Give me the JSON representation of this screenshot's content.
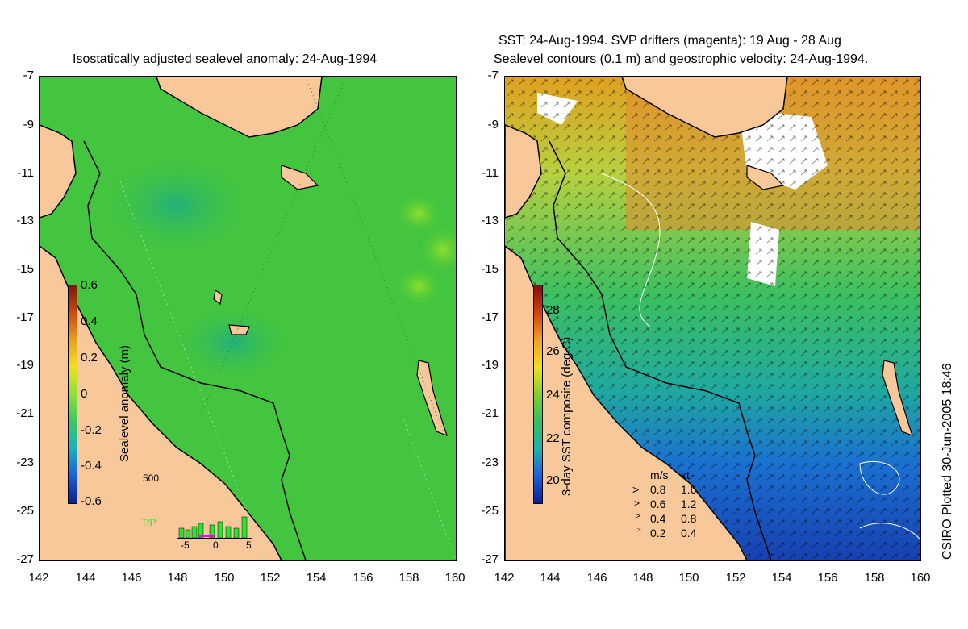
{
  "left_panel": {
    "title": "Isostatically adjusted sealevel anomaly: 24-Aug-1994",
    "colorbar_label": "Sealevel anomaly (m)",
    "colorbar_ticks": [
      "0.6",
      "0.4",
      "0.2",
      "0",
      "-0.2",
      "-0.4",
      "-0.6"
    ],
    "inset": {
      "ymax_label": "500",
      "series_label": "T/P",
      "x_ticks": [
        "-5",
        "0",
        "5"
      ]
    }
  },
  "right_panel": {
    "title_line1": "SST: 24-Aug-1994. SVP drifters (magenta): 19 Aug - 28 Aug",
    "title_line2": "Sealevel contours (0.1 m) and geostrophic velocity: 24-Aug-1994.",
    "colorbar_label": "3-day SST composite (deg C)",
    "colorbar_ticks": [
      "28",
      "26",
      "24",
      "22",
      "20"
    ],
    "velocity_legend": {
      "header_ms": "m/s",
      "header_kt": "kt",
      "rows": [
        {
          "ms": "0.8",
          "kt": "1.6"
        },
        {
          "ms": "0.6",
          "kt": "1.2"
        },
        {
          "ms": "0.4",
          "kt": "0.8"
        },
        {
          "ms": "0.2",
          "kt": "0.4"
        }
      ]
    }
  },
  "axes": {
    "lat_ticks": [
      "-7",
      "-9",
      "-11",
      "-13",
      "-15",
      "-17",
      "-19",
      "-21",
      "-23",
      "-25",
      "-27"
    ],
    "lon_ticks": [
      "142",
      "144",
      "146",
      "148",
      "150",
      "152",
      "154",
      "156",
      "158",
      "160"
    ]
  },
  "credit": "CSIRO Plotted 30-Jun-2005 18:46",
  "colors": {
    "land": "#f8c89a",
    "ocean_green": "#3fc83f",
    "coast": "#000000"
  }
}
